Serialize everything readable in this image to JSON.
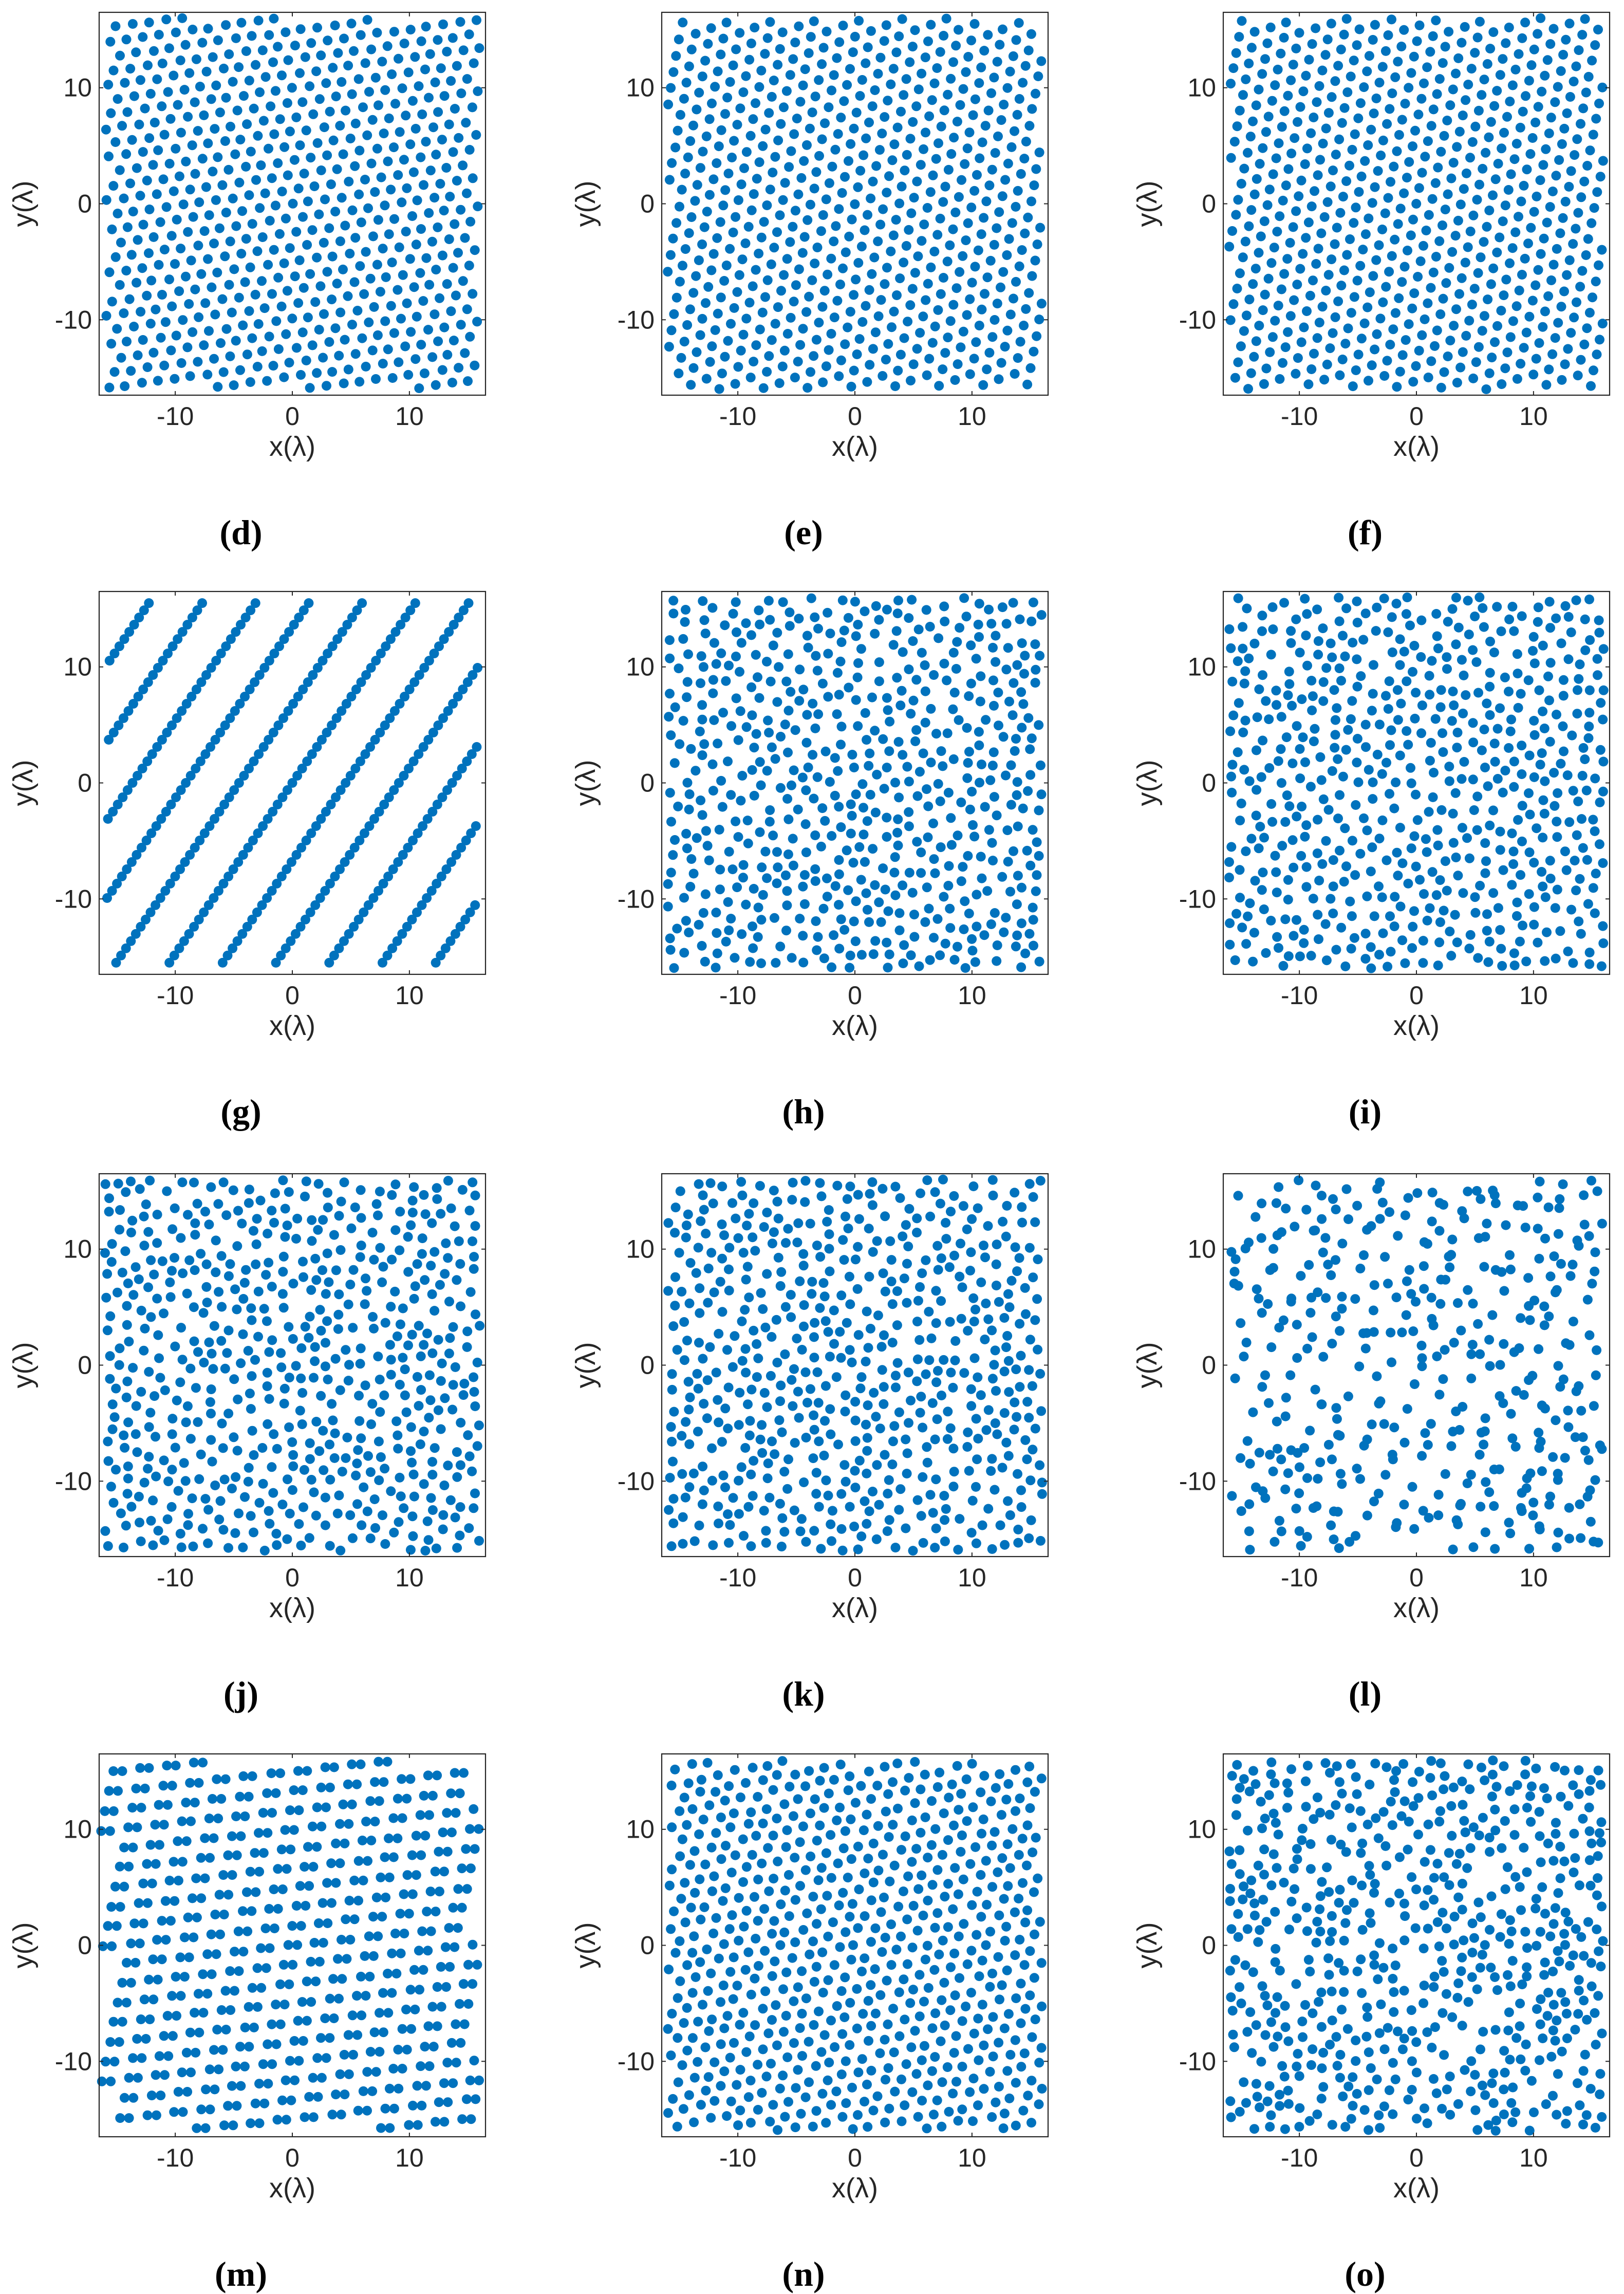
{
  "chart_data": [
    {
      "panel": "d",
      "type": "scatter",
      "xlabel": "x(λ)",
      "ylabel": "y(λ)",
      "xlim": [
        -16.5,
        16.5
      ],
      "ylim": [
        -16.5,
        16.5
      ],
      "xticks": [
        -10,
        0,
        10
      ],
      "yticks": [
        -10,
        0,
        10
      ],
      "tick_labels": [
        "-10",
        "0",
        "10"
      ],
      "marker_color": "#0072BD",
      "pattern": "hexagonal lattice, slight rotation",
      "point_count": 576,
      "caption": "(d)"
    },
    {
      "panel": "e",
      "type": "scatter",
      "xlabel": "x(λ)",
      "ylabel": "y(λ)",
      "xlim": [
        -16.5,
        16.5
      ],
      "ylim": [
        -16.5,
        16.5
      ],
      "xticks": [
        -10,
        0,
        10
      ],
      "yticks": [
        -10,
        0,
        10
      ],
      "tick_labels": [
        "-10",
        "0",
        "10"
      ],
      "marker_color": "#0072BD",
      "pattern": "hexagonal lattice, rotated",
      "point_count": 576,
      "caption": "(e)"
    },
    {
      "panel": "f",
      "type": "scatter",
      "xlabel": "x(λ)",
      "ylabel": "y(λ)",
      "xlim": [
        -16.5,
        16.5
      ],
      "ylim": [
        -16.5,
        16.5
      ],
      "xticks": [
        -10,
        0,
        10
      ],
      "yticks": [
        -10,
        0,
        10
      ],
      "tick_labels": [
        "-10",
        "0",
        "10"
      ],
      "marker_color": "#0072BD",
      "pattern": "oblique lattice",
      "point_count": 576,
      "caption": "(f)"
    },
    {
      "panel": "g",
      "type": "scatter",
      "xlabel": "x(λ)",
      "ylabel": "y(λ)",
      "xlim": [
        -16.5,
        16.5
      ],
      "ylim": [
        -16.5,
        16.5
      ],
      "xticks": [
        -10,
        0,
        10
      ],
      "yticks": [
        -10,
        0,
        10
      ],
      "tick_labels": [
        "-10",
        "0",
        "10"
      ],
      "marker_color": "#0072BD",
      "pattern": "dense diagonal lines",
      "point_count": 576,
      "caption": "(g)"
    },
    {
      "panel": "h",
      "type": "scatter",
      "xlabel": "x(λ)",
      "ylabel": "y(λ)",
      "xlim": [
        -16.5,
        16.5
      ],
      "ylim": [
        -16.5,
        16.5
      ],
      "xticks": [
        -10,
        0,
        10
      ],
      "yticks": [
        -10,
        0,
        10
      ],
      "tick_labels": [
        "-10",
        "0",
        "10"
      ],
      "marker_color": "#0072BD",
      "pattern": "quasi-random",
      "point_count": 576,
      "caption": "(h)"
    },
    {
      "panel": "i",
      "type": "scatter",
      "xlabel": "x(λ)",
      "ylabel": "y(λ)",
      "xlim": [
        -16.5,
        16.5
      ],
      "ylim": [
        -16.5,
        16.5
      ],
      "xticks": [
        -10,
        0,
        10
      ],
      "yticks": [
        -10,
        0,
        10
      ],
      "tick_labels": [
        "-10",
        "0",
        "10"
      ],
      "marker_color": "#0072BD",
      "pattern": "quasi-random",
      "point_count": 576,
      "caption": "(i)"
    },
    {
      "panel": "j",
      "type": "scatter",
      "xlabel": "x(λ)",
      "ylabel": "y(λ)",
      "xlim": [
        -16.5,
        16.5
      ],
      "ylim": [
        -16.5,
        16.5
      ],
      "xticks": [
        -10,
        0,
        10
      ],
      "yticks": [
        -10,
        0,
        10
      ],
      "tick_labels": [
        "-10",
        "0",
        "10"
      ],
      "marker_color": "#0072BD",
      "pattern": "quasi-random",
      "point_count": 576,
      "caption": "(j)"
    },
    {
      "panel": "k",
      "type": "scatter",
      "xlabel": "x(λ)",
      "ylabel": "y(λ)",
      "xlim": [
        -16.5,
        16.5
      ],
      "ylim": [
        -16.5,
        16.5
      ],
      "xticks": [
        -10,
        0,
        10
      ],
      "yticks": [
        -10,
        0,
        10
      ],
      "tick_labels": [
        "-10",
        "0",
        "10"
      ],
      "marker_color": "#0072BD",
      "pattern": "quasi-random",
      "point_count": 576,
      "caption": "(k)"
    },
    {
      "panel": "l",
      "type": "scatter",
      "xlabel": "x(λ)",
      "ylabel": "y(λ)",
      "xlim": [
        -16.5,
        16.5
      ],
      "ylim": [
        -16.5,
        16.5
      ],
      "xticks": [
        -10,
        0,
        10
      ],
      "yticks": [
        -10,
        0,
        10
      ],
      "tick_labels": [
        "-10",
        "0",
        "10"
      ],
      "marker_color": "#0072BD",
      "pattern": "quasi-random with diagonal streaks",
      "point_count": 576,
      "caption": "(l)"
    },
    {
      "panel": "m",
      "type": "scatter",
      "xlabel": "x(λ)",
      "ylabel": "y(λ)",
      "xlim": [
        -16.5,
        16.5
      ],
      "ylim": [
        -16.5,
        16.5
      ],
      "xticks": [
        -10,
        0,
        10
      ],
      "yticks": [
        -10,
        0,
        10
      ],
      "tick_labels": [
        "-10",
        "0",
        "10"
      ],
      "marker_color": "#0072BD",
      "pattern": "lattice of paired elements",
      "point_count": 576,
      "caption": "(m)"
    },
    {
      "panel": "n",
      "type": "scatter",
      "xlabel": "x(λ)",
      "ylabel": "y(λ)",
      "xlim": [
        -16.5,
        16.5
      ],
      "ylim": [
        -16.5,
        16.5
      ],
      "xticks": [
        -10,
        0,
        10
      ],
      "yticks": [
        -10,
        0,
        10
      ],
      "tick_labels": [
        "-10",
        "0",
        "10"
      ],
      "marker_color": "#0072BD",
      "pattern": "near-uniform hexagonal",
      "point_count": 576,
      "caption": "(n)"
    },
    {
      "panel": "o",
      "type": "scatter",
      "xlabel": "x(λ)",
      "ylabel": "y(λ)",
      "xlim": [
        -16.5,
        16.5
      ],
      "ylim": [
        -16.5,
        16.5
      ],
      "xticks": [
        -10,
        0,
        10
      ],
      "yticks": [
        -10,
        0,
        10
      ],
      "tick_labels": [
        "-10",
        "0",
        "10"
      ],
      "marker_color": "#0072BD",
      "pattern": "random clustered",
      "point_count": 576,
      "caption": "(o)"
    }
  ]
}
